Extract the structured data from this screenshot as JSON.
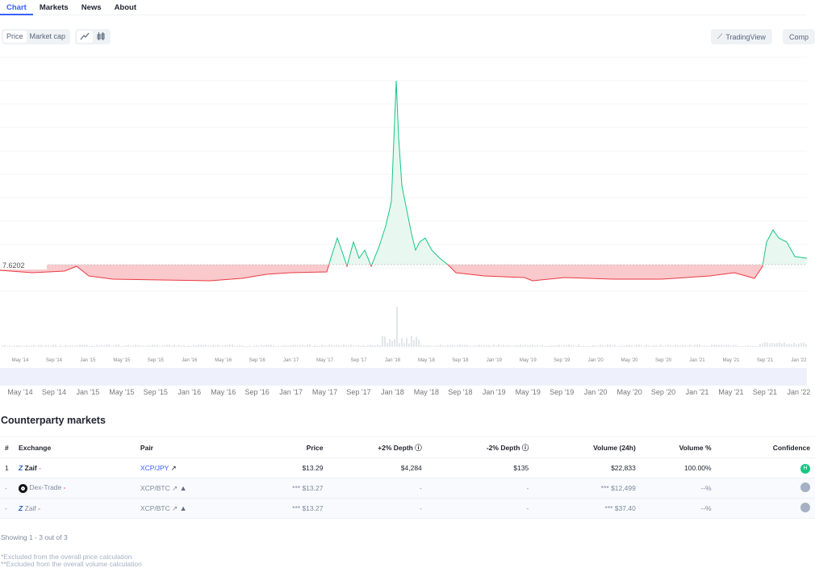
{
  "tabs": [
    {
      "label": "Chart",
      "active": true
    },
    {
      "label": "Markets"
    },
    {
      "label": "News"
    },
    {
      "label": "About"
    }
  ],
  "toolbar": {
    "price": "Price",
    "market_cap": "Market cap",
    "line_icon": "line-chart-icon",
    "candle_icon": "candlestick-icon",
    "tradingview": "TradingView",
    "compare": "Comp"
  },
  "chart_data": {
    "type": "line",
    "baseline_label": "7.6202",
    "x_ticks": [
      "May '14",
      "Sep '14",
      "Jan '15",
      "May '15",
      "Sep '15",
      "Jan '16",
      "May '16",
      "Sep '16",
      "Jan '17",
      "May '17",
      "Sep '17",
      "Jan '18",
      "May '18",
      "Sep '18",
      "Jan '19",
      "May '19",
      "Sep '19",
      "Jan '20",
      "May '20",
      "Sep '20",
      "Jan '21",
      "May '21",
      "Sep '21",
      "Jan '22"
    ],
    "colors": {
      "above": "#16c784",
      "below": "#ea3943"
    }
  },
  "markets": {
    "title": "Counterparty markets",
    "columns": [
      "#",
      "Exchange",
      "Pair",
      "Price",
      "+2% Depth",
      "-2% Depth",
      "Volume (24h)",
      "Volume %",
      "Confidence"
    ],
    "rows": [
      {
        "rank": "1",
        "exchange": "Zaif",
        "pair": "XCP/JPY",
        "price": "$13.29",
        "depth_plus": "$4,284",
        "depth_minus": "$135",
        "volume": "$22,833",
        "volume_pct": "100.00%",
        "confidence": "H",
        "excluded": false
      },
      {
        "rank": "-",
        "exchange": "Dex-Trade",
        "pair": "XCP/BTC",
        "price": "*** $13.27",
        "depth_plus": "-",
        "depth_minus": "-",
        "volume": "*** $12,499",
        "volume_pct": "--%",
        "confidence": "",
        "excluded": true
      },
      {
        "rank": "-",
        "exchange": "Zaif",
        "pair": "XCP/BTC",
        "price": "*** $13.27",
        "depth_plus": "-",
        "depth_minus": "-",
        "volume": "*** $37.40",
        "volume_pct": "--%",
        "confidence": "",
        "excluded": true
      }
    ],
    "showing": "Showing 1 - 3 out of 3",
    "note1": "*Excluded from the overall price calculation",
    "note2": "**Excluded from the overall volume calculation"
  }
}
